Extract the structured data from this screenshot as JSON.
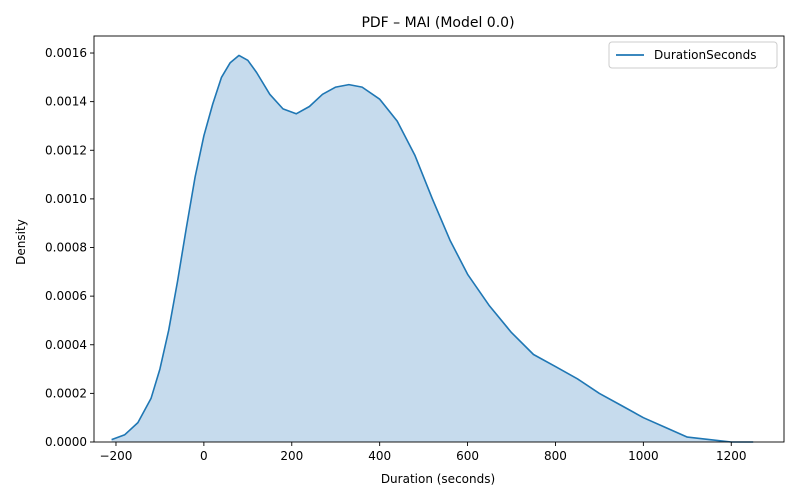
{
  "chart_data": {
    "type": "area",
    "title": "PDF – MAI (Model 0.0)",
    "xlabel": "Duration (seconds)",
    "ylabel": "Density",
    "xlim": [
      -250,
      1320
    ],
    "ylim": [
      0,
      0.00167
    ],
    "xticks": [
      -200,
      0,
      200,
      400,
      600,
      800,
      1000,
      1200
    ],
    "xtick_labels": [
      "−200",
      "0",
      "200",
      "400",
      "600",
      "800",
      "1000",
      "1200"
    ],
    "yticks": [
      0,
      0.0002,
      0.0004,
      0.0006,
      0.0008,
      0.001,
      0.0012,
      0.0014,
      0.0016
    ],
    "ytick_labels": [
      "0.0000",
      "0.0002",
      "0.0004",
      "0.0006",
      "0.0008",
      "0.0010",
      "0.0012",
      "0.0014",
      "0.0016"
    ],
    "grid": false,
    "legend_position": "top-right",
    "series": [
      {
        "name": "DurationSeconds",
        "color": "#1f77b4",
        "fill_color": "#c6dbed",
        "x": [
          -210,
          -180,
          -150,
          -120,
          -100,
          -80,
          -60,
          -40,
          -20,
          0,
          20,
          40,
          60,
          80,
          100,
          120,
          150,
          180,
          210,
          240,
          270,
          300,
          330,
          360,
          400,
          440,
          480,
          520,
          560,
          600,
          650,
          700,
          750,
          800,
          850,
          900,
          950,
          1000,
          1050,
          1100,
          1150,
          1200,
          1250
        ],
        "y": [
          1e-05,
          3e-05,
          8e-05,
          0.00018,
          0.0003,
          0.00046,
          0.00066,
          0.00088,
          0.00109,
          0.00126,
          0.00139,
          0.0015,
          0.00156,
          0.00159,
          0.00157,
          0.00152,
          0.00143,
          0.00137,
          0.00135,
          0.00138,
          0.00143,
          0.00146,
          0.00147,
          0.00146,
          0.00141,
          0.00132,
          0.00118,
          0.001,
          0.00083,
          0.00069,
          0.00056,
          0.00045,
          0.00036,
          0.00031,
          0.00026,
          0.0002,
          0.00015,
          0.0001,
          6e-05,
          2e-05,
          1e-05,
          0.0,
          0.0
        ]
      }
    ]
  }
}
